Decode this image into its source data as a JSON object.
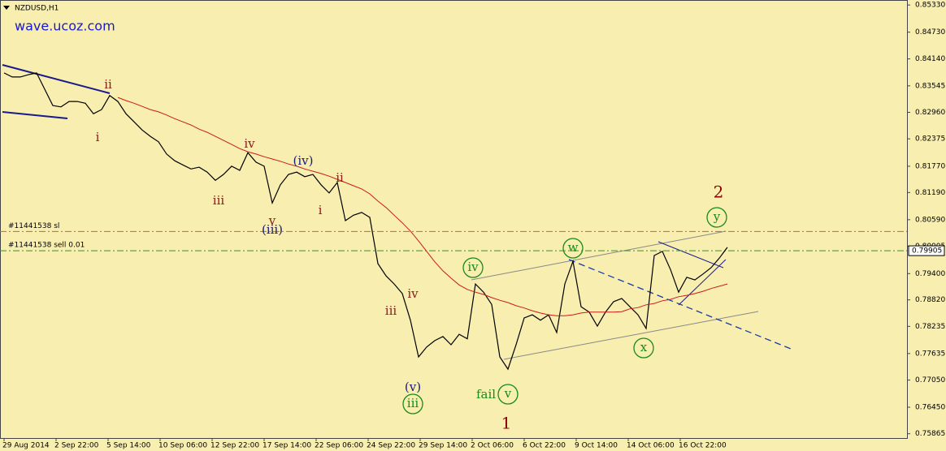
{
  "chart_data": {
    "type": "line",
    "title": "NZDUSD,H1",
    "watermark": "wave.ucoz.com",
    "background": "#f7eeb0",
    "ylim": [
      0.7577,
      0.8544
    ],
    "yticks": [
      {
        "value": 0.8533,
        "label": "0.85330"
      },
      {
        "value": 0.8473,
        "label": "0.84730"
      },
      {
        "value": 0.8414,
        "label": "0.84140"
      },
      {
        "value": 0.83545,
        "label": "0.83545"
      },
      {
        "value": 0.8296,
        "label": "0.82960"
      },
      {
        "value": 0.82375,
        "label": "0.82375"
      },
      {
        "value": 0.8177,
        "label": "0.81770"
      },
      {
        "value": 0.8119,
        "label": "0.81190"
      },
      {
        "value": 0.8059,
        "label": "0.80590"
      },
      {
        "value": 0.80005,
        "label": "0.80005"
      },
      {
        "value": 0.794,
        "label": "0.79400"
      },
      {
        "value": 0.7882,
        "label": "0.78820"
      },
      {
        "value": 0.78235,
        "label": "0.78235"
      },
      {
        "value": 0.77635,
        "label": "0.77635"
      },
      {
        "value": 0.7705,
        "label": "0.77050"
      },
      {
        "value": 0.7645,
        "label": "0.76450"
      },
      {
        "value": 0.75865,
        "label": "0.75865"
      }
    ],
    "xtick_labels": [
      "29 Aug 2014",
      "2 Sep 22:00",
      "5 Sep 14:00",
      "10 Sep 06:00",
      "12 Sep 22:00",
      "17 Sep 14:00",
      "22 Sep 06:00",
      "24 Sep 22:00",
      "29 Sep 14:00",
      "2 Oct 06:00",
      "6 Oct 22:00",
      "9 Oct 14:00",
      "14 Oct 06:00",
      "16 Oct 22:00"
    ],
    "series": [
      {
        "color": "#000000",
        "values": [
          0.8383,
          0.8374,
          0.8374,
          0.8379,
          0.8383,
          0.8347,
          0.8311,
          0.8308,
          0.832,
          0.832,
          0.8316,
          0.8293,
          0.8302,
          0.8333,
          0.832,
          0.8293,
          0.8275,
          0.8257,
          0.8243,
          0.8231,
          0.8204,
          0.8189,
          0.818,
          0.8171,
          0.8175,
          0.8164,
          0.8146,
          0.8159,
          0.8177,
          0.8168,
          0.8207,
          0.8186,
          0.8177,
          0.8096,
          0.8136,
          0.8159,
          0.8164,
          0.8154,
          0.8159,
          0.8136,
          0.8118,
          0.8141,
          0.8057,
          0.8069,
          0.8075,
          0.8064,
          0.7962,
          0.7935,
          0.7917,
          0.7896,
          0.7837,
          0.7756,
          0.7778,
          0.7792,
          0.7801,
          0.7783,
          0.7806,
          0.7796,
          0.7917,
          0.7899,
          0.7872,
          0.7756,
          0.7729,
          0.7783,
          0.7842,
          0.7849,
          0.7837,
          0.7849,
          0.781,
          0.7917,
          0.7967,
          0.7867,
          0.7855,
          0.7824,
          0.7855,
          0.7878,
          0.7885,
          0.7867,
          0.7849,
          0.7819,
          0.798,
          0.7989,
          0.7949,
          0.7899,
          0.7932,
          0.7926,
          0.7939,
          0.7953,
          0.7974,
          0.7998
        ]
      },
      {
        "color": "#cc1a1a",
        "values": [
          null,
          null,
          null,
          null,
          null,
          null,
          null,
          null,
          null,
          null,
          null,
          null,
          null,
          null,
          0.8329,
          0.8322,
          0.8316,
          0.8309,
          0.8302,
          0.8297,
          0.829,
          0.8282,
          0.8275,
          0.8268,
          0.8259,
          0.8252,
          0.8243,
          0.8234,
          0.8225,
          0.8216,
          0.8209,
          0.8204,
          0.8198,
          0.8193,
          0.8188,
          0.8182,
          0.8177,
          0.8171,
          0.8166,
          0.8161,
          0.8155,
          0.8148,
          0.8141,
          0.8134,
          0.8127,
          0.8116,
          0.81,
          0.8086,
          0.8069,
          0.8052,
          0.8034,
          0.8012,
          0.7989,
          0.7966,
          0.7946,
          0.793,
          0.7915,
          0.7905,
          0.7899,
          0.7894,
          0.7887,
          0.7881,
          0.7876,
          0.7869,
          0.7864,
          0.7858,
          0.7853,
          0.7849,
          0.7847,
          0.7847,
          0.7849,
          0.7853,
          0.7855,
          0.7855,
          0.7855,
          0.7855,
          0.7856,
          0.7862,
          0.7865,
          0.7871,
          0.7874,
          0.788,
          0.7883,
          0.7889,
          0.7892,
          0.7896,
          0.7901,
          0.7907,
          0.7912,
          0.7917
        ]
      }
    ],
    "hlines": [
      {
        "label": "#11441538 sl",
        "value": 0.8033,
        "color": "#e05a2a"
      },
      {
        "label": "#11441538 sell 0.01",
        "value": 0.79905,
        "color": "#2a9a2a"
      }
    ],
    "last_price": {
      "value": 0.79905,
      "label": "0.79905"
    },
    "annotations": [
      {
        "text": "ii",
        "color": "#8b1a1a"
      },
      {
        "text": "i",
        "color": "#8b1a1a"
      },
      {
        "text": "iii",
        "color": "#8b1a1a"
      },
      {
        "text": "iv",
        "color": "#8b1a1a"
      },
      {
        "text": "v",
        "color": "#8b1a1a"
      },
      {
        "text": "(iii)",
        "color": "#1a1a7a"
      },
      {
        "text": "(iv)",
        "color": "#1a1a7a"
      },
      {
        "text": "ii",
        "color": "#8b1a1a"
      },
      {
        "text": "i",
        "color": "#8b1a1a"
      },
      {
        "text": "iii",
        "color": "#8b1a1a"
      },
      {
        "text": "iv",
        "color": "#8b1a1a"
      },
      {
        "text": "(v)",
        "color": "#1a1a7a"
      },
      {
        "text": "iii",
        "color": "#1a8a1a",
        "circled": true
      },
      {
        "text": "iv",
        "color": "#1a8a1a",
        "circled": true
      },
      {
        "text": "w",
        "color": "#1a8a1a",
        "circled": true
      },
      {
        "text": "x",
        "color": "#1a8a1a",
        "circled": true
      },
      {
        "text": "v",
        "color": "#1a8a1a",
        "circled": true
      },
      {
        "text": "fail",
        "color": "#1a8a1a"
      },
      {
        "text": "y",
        "color": "#1a8a1a",
        "circled": true
      },
      {
        "text": "2",
        "color": "#8b0000",
        "big": true
      },
      {
        "text": "1",
        "color": "#8b0000",
        "big": true
      }
    ]
  }
}
